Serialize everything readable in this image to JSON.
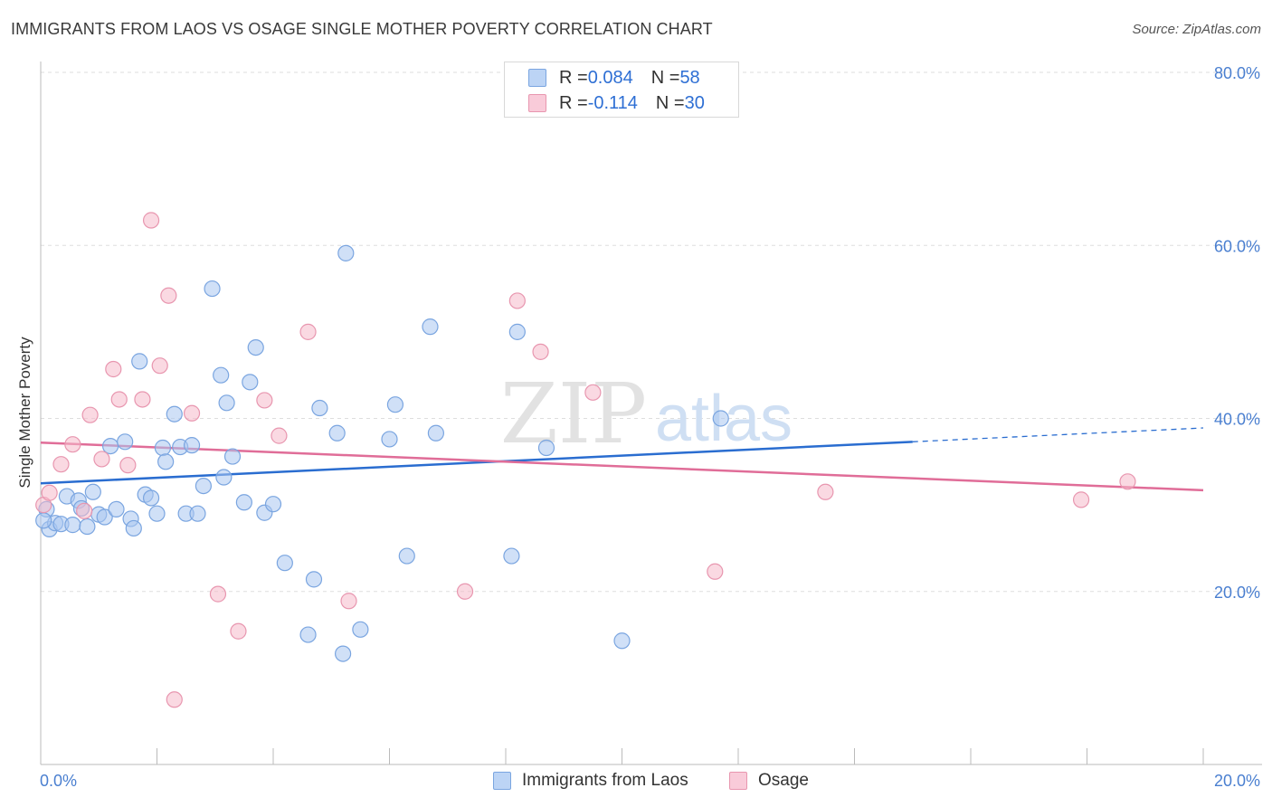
{
  "title": "IMMIGRANTS FROM LAOS VS OSAGE SINGLE MOTHER POVERTY CORRELATION CHART",
  "source": "Source: ZipAtlas.com",
  "watermark": {
    "zip": "ZIP",
    "atlas": "atlas"
  },
  "legend_top": {
    "rows": [
      {
        "r_label": "R = ",
        "r_value": "0.084",
        "n_label": "N = ",
        "n_value": "58"
      },
      {
        "r_label": "R = ",
        "r_value": "-0.114",
        "n_label": "N = ",
        "n_value": "30"
      }
    ]
  },
  "colors": {
    "blue_fill": "#a9c7f0",
    "blue_stroke": "#7aa5e0",
    "blue_line": "#2a6dd0",
    "pink_fill": "#f6b9cb",
    "pink_stroke": "#e896af",
    "pink_line": "#e06d98",
    "axis_text": "#4a7fd0",
    "grid": "#dddddd"
  },
  "chart_data": {
    "type": "scatter",
    "title": "IMMIGRANTS FROM LAOS VS OSAGE SINGLE MOTHER POVERTY CORRELATION CHART",
    "xlabel": "",
    "ylabel": "Single Mother Poverty",
    "xlim": [
      0,
      20
    ],
    "ylim": [
      0,
      80
    ],
    "x_tick_labels": [
      "0.0%",
      "20.0%"
    ],
    "y_tick_values": [
      20,
      40,
      60,
      80
    ],
    "y_tick_labels": [
      "20.0%",
      "40.0%",
      "60.0%",
      "80.0%"
    ],
    "grid": true,
    "legend_placement": "top-center",
    "series": [
      {
        "name": "Immigrants from Laos",
        "color": "#a9c7f0",
        "R": 0.084,
        "N": 58,
        "trend": {
          "x": [
            0,
            15
          ],
          "y": [
            32.5,
            37.3
          ],
          "dashed_x": [
            15,
            20
          ],
          "dashed_y": [
            37.3,
            38.9
          ]
        },
        "points": [
          [
            0.1,
            29.5
          ],
          [
            0.15,
            27.2
          ],
          [
            0.25,
            27.9
          ],
          [
            0.35,
            27.8
          ],
          [
            0.45,
            31.0
          ],
          [
            0.55,
            27.7
          ],
          [
            0.65,
            30.5
          ],
          [
            0.7,
            29.6
          ],
          [
            0.8,
            27.5
          ],
          [
            0.9,
            31.5
          ],
          [
            1.0,
            28.9
          ],
          [
            1.1,
            28.6
          ],
          [
            1.2,
            36.8
          ],
          [
            1.3,
            29.5
          ],
          [
            1.45,
            37.3
          ],
          [
            1.55,
            28.4
          ],
          [
            1.6,
            27.3
          ],
          [
            1.7,
            46.6
          ],
          [
            1.8,
            31.2
          ],
          [
            1.9,
            30.8
          ],
          [
            2.0,
            29.0
          ],
          [
            2.1,
            36.6
          ],
          [
            2.15,
            35.0
          ],
          [
            2.3,
            40.5
          ],
          [
            2.4,
            36.7
          ],
          [
            2.5,
            29.0
          ],
          [
            2.6,
            36.9
          ],
          [
            2.7,
            29.0
          ],
          [
            2.8,
            32.2
          ],
          [
            2.95,
            55.0
          ],
          [
            3.1,
            45.0
          ],
          [
            3.15,
            33.2
          ],
          [
            3.2,
            41.8
          ],
          [
            3.3,
            35.6
          ],
          [
            3.5,
            30.3
          ],
          [
            3.6,
            44.2
          ],
          [
            3.7,
            48.2
          ],
          [
            3.85,
            29.1
          ],
          [
            4.0,
            30.1
          ],
          [
            4.2,
            23.3
          ],
          [
            4.6,
            15.0
          ],
          [
            4.7,
            21.4
          ],
          [
            4.8,
            41.2
          ],
          [
            5.1,
            38.3
          ],
          [
            5.2,
            12.8
          ],
          [
            5.25,
            59.1
          ],
          [
            5.5,
            15.6
          ],
          [
            6.0,
            37.6
          ],
          [
            6.1,
            41.6
          ],
          [
            6.3,
            24.1
          ],
          [
            6.7,
            50.6
          ],
          [
            6.8,
            38.3
          ],
          [
            8.1,
            24.1
          ],
          [
            8.2,
            50.0
          ],
          [
            8.7,
            36.6
          ],
          [
            10.0,
            14.3
          ],
          [
            11.7,
            40.0
          ],
          [
            0.05,
            28.2
          ]
        ]
      },
      {
        "name": "Osage",
        "color": "#f6b9cb",
        "R": -0.114,
        "N": 30,
        "trend": {
          "x": [
            0,
            20
          ],
          "y": [
            37.2,
            31.7
          ]
        },
        "points": [
          [
            0.05,
            30.0
          ],
          [
            0.15,
            31.4
          ],
          [
            0.35,
            34.7
          ],
          [
            0.55,
            37.0
          ],
          [
            0.75,
            29.3
          ],
          [
            0.85,
            40.4
          ],
          [
            1.05,
            35.3
          ],
          [
            1.25,
            45.7
          ],
          [
            1.35,
            42.2
          ],
          [
            1.5,
            34.6
          ],
          [
            1.75,
            42.2
          ],
          [
            1.9,
            62.9
          ],
          [
            2.05,
            46.1
          ],
          [
            2.2,
            54.2
          ],
          [
            2.3,
            7.5
          ],
          [
            2.6,
            40.6
          ],
          [
            3.05,
            19.7
          ],
          [
            3.4,
            15.4
          ],
          [
            3.85,
            42.1
          ],
          [
            4.1,
            38.0
          ],
          [
            4.6,
            50.0
          ],
          [
            5.3,
            18.9
          ],
          [
            7.3,
            20.0
          ],
          [
            8.2,
            53.6
          ],
          [
            8.6,
            47.7
          ],
          [
            9.5,
            43.0
          ],
          [
            11.6,
            22.3
          ],
          [
            13.5,
            31.5
          ],
          [
            17.9,
            30.6
          ],
          [
            18.7,
            32.7
          ]
        ]
      }
    ]
  }
}
